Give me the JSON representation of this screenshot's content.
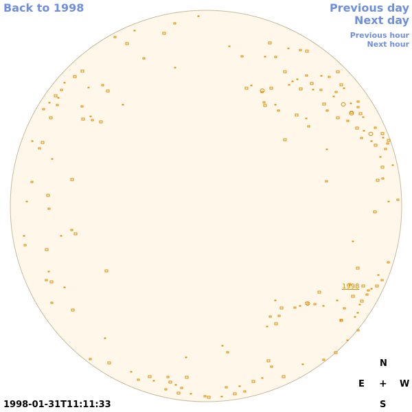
{
  "nav": {
    "back_label": "Back to 1998",
    "previous_day_label": "Previous day",
    "next_day_label": "Next day",
    "previous_hour_label": "Previous hour",
    "next_hour_label": "Next hour"
  },
  "compass": {
    "north": "N",
    "east": "E",
    "center": "+",
    "west": "W",
    "south": "S"
  },
  "sun": {
    "region_label": "1998"
  },
  "timestamp": "1998-01-31T11:11:33",
  "colors": {
    "link": "#6f8fdd",
    "disk_fill": "#fff8ea",
    "disk_border": "#c8b89a",
    "feature": "#e08b00"
  }
}
